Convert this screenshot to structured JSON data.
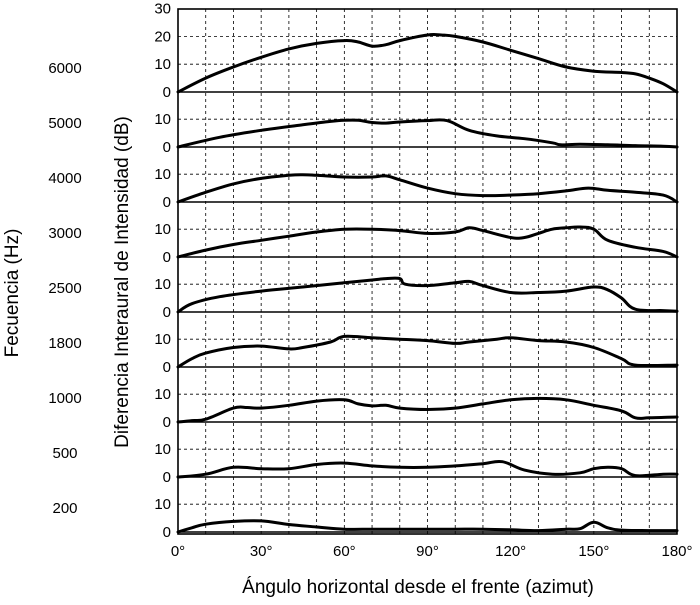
{
  "chart_data": {
    "type": "line",
    "xlabel": "Ángulo horizontal desde el frente (azimut)",
    "ylabel": "Diferencia Interaural de Intensidad (dB)",
    "left_label": "Fecuencia (Hz)",
    "xlim": [
      0,
      180
    ],
    "ylim_per_panel": [
      0,
      10
    ],
    "ylim_top_panel": [
      0,
      30
    ],
    "x_ticks": [
      "0°",
      "30°",
      "60°",
      "90°",
      "120°",
      "150°",
      "180°"
    ],
    "x_tick_values": [
      0,
      30,
      60,
      90,
      120,
      150,
      180
    ],
    "grid": true,
    "panels": [
      {
        "frequency": "6000",
        "y_ticks": [
          "30",
          "20",
          "10",
          "0"
        ],
        "x": [
          0,
          10,
          20,
          30,
          40,
          50,
          60,
          65,
          70,
          75,
          80,
          90,
          95,
          100,
          110,
          120,
          130,
          140,
          150,
          160,
          165,
          170,
          175,
          180
        ],
        "y": [
          0,
          5,
          9,
          12.5,
          15.5,
          17.5,
          18.5,
          18,
          16.5,
          17,
          18.5,
          20.5,
          20.5,
          20,
          18,
          15,
          12,
          9,
          7.5,
          7,
          6.5,
          5,
          3,
          0
        ]
      },
      {
        "frequency": "5000",
        "y_ticks": [
          "10",
          "0"
        ],
        "x": [
          0,
          15,
          30,
          45,
          55,
          60,
          65,
          70,
          75,
          80,
          90,
          97,
          105,
          115,
          125,
          135,
          138,
          145,
          155,
          165,
          175,
          180
        ],
        "y": [
          0,
          3.5,
          6,
          8,
          9.2,
          9.6,
          9.6,
          8.8,
          8.6,
          9,
          9.5,
          9.5,
          6,
          4,
          3,
          1.5,
          0.8,
          1,
          0.8,
          0.5,
          0.3,
          0
        ]
      },
      {
        "frequency": "4000",
        "y_ticks": [
          "10",
          "0"
        ],
        "x": [
          0,
          10,
          20,
          30,
          40,
          45,
          50,
          60,
          70,
          75,
          80,
          90,
          100,
          110,
          120,
          130,
          140,
          148,
          155,
          165,
          175,
          180
        ],
        "y": [
          0,
          3.5,
          6.5,
          8.5,
          9.6,
          9.8,
          9.6,
          9,
          9,
          9.4,
          8,
          5,
          3,
          2.3,
          2.5,
          3,
          4,
          5,
          4.2,
          3.5,
          2.5,
          0
        ]
      },
      {
        "frequency": "3000",
        "y_ticks": [
          "10",
          "0"
        ],
        "x": [
          0,
          10,
          20,
          30,
          40,
          50,
          60,
          70,
          80,
          90,
          100,
          105,
          110,
          120,
          125,
          130,
          135,
          140,
          145,
          150,
          155,
          165,
          175,
          180
        ],
        "y": [
          0,
          2.5,
          4.5,
          6,
          7.5,
          9,
          10,
          10,
          9.5,
          8.5,
          9,
          10.5,
          9.5,
          7,
          7,
          8.5,
          10,
          10.5,
          10.8,
          10,
          6,
          3.5,
          2,
          0
        ]
      },
      {
        "frequency": "2500",
        "y_ticks": [
          "10",
          "0"
        ],
        "x": [
          0,
          5,
          15,
          30,
          45,
          60,
          70,
          75,
          80,
          82,
          90,
          100,
          105,
          110,
          120,
          130,
          140,
          150,
          155,
          160,
          165,
          175,
          180
        ],
        "y": [
          0,
          3,
          5.5,
          7.5,
          9,
          10.5,
          11.5,
          12,
          12,
          10,
          9.5,
          10.5,
          11,
          9.5,
          7,
          7,
          7.5,
          9,
          8,
          5,
          1,
          0.5,
          0.3
        ]
      },
      {
        "frequency": "1800",
        "y_ticks": [
          "10",
          "0"
        ],
        "x": [
          0,
          5,
          10,
          20,
          30,
          40,
          45,
          55,
          60,
          70,
          80,
          90,
          100,
          105,
          115,
          120,
          130,
          140,
          150,
          160,
          165,
          180
        ],
        "y": [
          0,
          3,
          5,
          7,
          7.5,
          6.5,
          7,
          9,
          11,
          10.5,
          10,
          9.5,
          8.5,
          9,
          10,
          10.5,
          9.5,
          9,
          7,
          3,
          0.7,
          0.7
        ]
      },
      {
        "frequency": "1000",
        "y_ticks": [
          "10",
          "0"
        ],
        "x": [
          0,
          5,
          10,
          20,
          25,
          30,
          40,
          50,
          60,
          65,
          70,
          75,
          80,
          90,
          100,
          110,
          120,
          130,
          140,
          150,
          160,
          165,
          170,
          180
        ],
        "y": [
          0,
          0.5,
          1,
          5,
          5.2,
          5,
          6,
          7.5,
          8,
          6.5,
          5.8,
          6,
          5,
          4.5,
          5,
          6.5,
          8,
          8.5,
          8,
          6,
          4,
          1.5,
          1.5,
          1.8
        ]
      },
      {
        "frequency": "500",
        "y_ticks": [
          "10",
          "0"
        ],
        "x": [
          0,
          10,
          20,
          30,
          40,
          50,
          60,
          70,
          80,
          90,
          100,
          110,
          117,
          125,
          135,
          145,
          150,
          155,
          160,
          165,
          175,
          180
        ],
        "y": [
          0,
          1,
          3.5,
          3,
          3,
          4.5,
          5,
          4,
          3.5,
          3.5,
          4,
          4.8,
          5.5,
          2.5,
          1,
          1.5,
          3,
          3.5,
          3,
          0.5,
          1,
          1
        ]
      },
      {
        "frequency": "200",
        "y_ticks": [
          "10",
          "0"
        ],
        "x": [
          0,
          5,
          10,
          20,
          30,
          40,
          50,
          60,
          70,
          80,
          90,
          100,
          110,
          120,
          130,
          140,
          145,
          150,
          155,
          160,
          170,
          180
        ],
        "y": [
          0,
          1.5,
          2.8,
          3.8,
          4,
          2.7,
          1.8,
          1,
          1,
          1,
          1,
          1,
          1,
          0.8,
          0.5,
          1,
          1.2,
          3.5,
          1.5,
          0.7,
          0.5,
          0.5
        ]
      }
    ]
  }
}
